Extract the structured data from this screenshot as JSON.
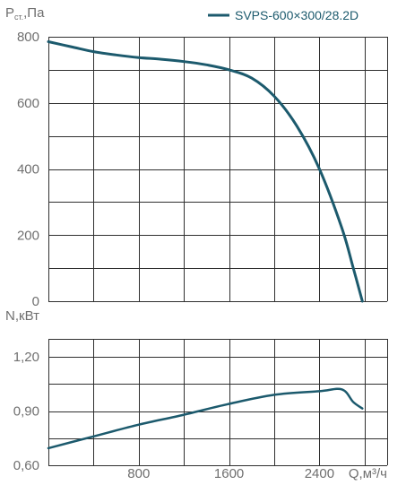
{
  "chart_data": [
    {
      "type": "line",
      "ylabel": "Pст.,Па",
      "ylabel_main": "P",
      "ylabel_sub": "ст.",
      "ylabel_unit": ",Па",
      "xlim": [
        0,
        3000
      ],
      "ylim": [
        0,
        800
      ],
      "x_grid_values": [
        0,
        400,
        800,
        1200,
        1600,
        2000,
        2400,
        2800,
        3000
      ],
      "y_ticks": [
        0,
        200,
        400,
        600,
        800
      ],
      "y_tick_labels": [
        "0",
        "200",
        "400",
        "600",
        "800"
      ],
      "y_grid_values": [
        0,
        100,
        200,
        300,
        400,
        500,
        600,
        700,
        800
      ],
      "grid": true,
      "legend_position": "top-right",
      "series": [
        {
          "name": "SVPS-600×300/28.2D",
          "color": "#1c5a6d",
          "x": [
            0,
            200,
            400,
            600,
            800,
            1000,
            1200,
            1400,
            1600,
            1800,
            2000,
            2200,
            2400,
            2600,
            2700,
            2780
          ],
          "y": [
            785,
            770,
            755,
            745,
            737,
            732,
            725,
            715,
            700,
            675,
            620,
            530,
            400,
            220,
            100,
            0
          ]
        }
      ]
    },
    {
      "type": "line",
      "ylabel": "N,кВт",
      "xlabel": "Q,м³/ч",
      "xlim": [
        0,
        3000
      ],
      "ylim": [
        0.6,
        1.3
      ],
      "x_ticks": [
        800,
        1600,
        2400
      ],
      "x_tick_labels": [
        "800",
        "1600",
        "2400"
      ],
      "x_grid_values": [
        0,
        400,
        800,
        1200,
        1600,
        2000,
        2400,
        2800,
        3000
      ],
      "y_ticks": [
        0.6,
        0.9,
        1.2
      ],
      "y_tick_labels": [
        "0,60",
        "0,90",
        "1,20"
      ],
      "y_grid_values": [
        0.6,
        0.75,
        0.9,
        1.05,
        1.2,
        1.3
      ],
      "grid": true,
      "series": [
        {
          "name": "SVPS-600×300/28.2D",
          "color": "#1c5a6d",
          "x": [
            0,
            400,
            800,
            1200,
            1600,
            2000,
            2400,
            2600,
            2700,
            2780
          ],
          "y": [
            0.695,
            0.76,
            0.825,
            0.88,
            0.94,
            0.99,
            1.01,
            1.02,
            0.95,
            0.915
          ]
        }
      ]
    }
  ]
}
